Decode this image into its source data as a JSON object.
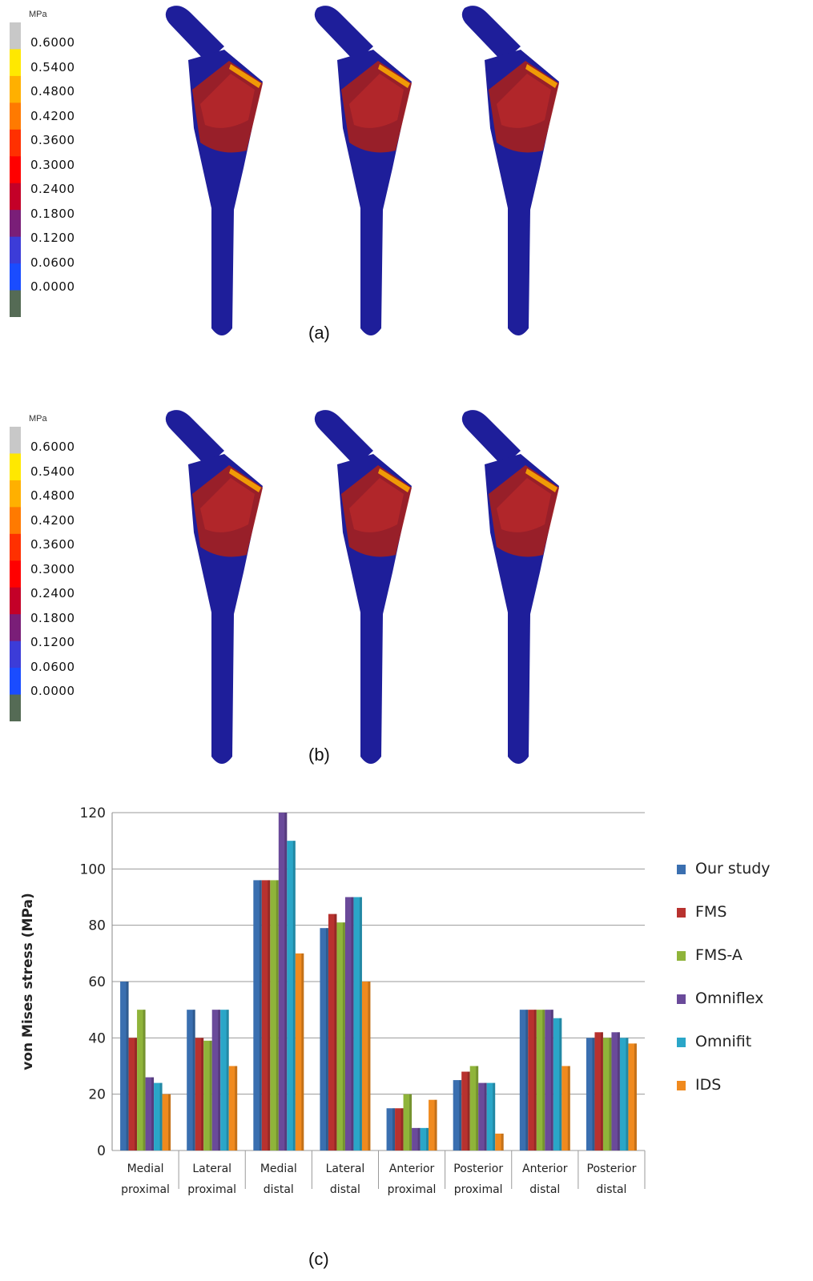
{
  "panels": [
    {
      "label": "(a)",
      "colorbar": {
        "unit": "MPa",
        "ticks": [
          "0.6000",
          "0.5400",
          "0.4800",
          "0.4200",
          "0.3600",
          "0.3000",
          "0.2400",
          "0.1800",
          "0.1200",
          "0.0600",
          "0.0000"
        ]
      },
      "stem_count": 3
    },
    {
      "label": "(b)",
      "colorbar": {
        "unit": "MPa",
        "ticks": [
          "0.6000",
          "0.5400",
          "0.4800",
          "0.4200",
          "0.3600",
          "0.3000",
          "0.2400",
          "0.1800",
          "0.1200",
          "0.0600",
          "0.0000"
        ]
      },
      "stem_count": 3
    }
  ],
  "colorbar_colors": [
    "#c8c8c8",
    "#ffe800",
    "#ffb000",
    "#ff7a00",
    "#ff3000",
    "#ff0000",
    "#c40028",
    "#7a1e78",
    "#3c3cd8",
    "#1a4cff",
    "#556b55"
  ],
  "stem_colors": {
    "base": "#1e1e9a",
    "stress": "#a32020",
    "hot": "#ffb000"
  },
  "chart_label": "(c)",
  "chart_data": {
    "type": "bar",
    "ylabel": "von Mises stress (MPa)",
    "ylim": [
      0,
      120
    ],
    "yticks": [
      0,
      20,
      40,
      60,
      80,
      100,
      120
    ],
    "grid": true,
    "legend_position": "right",
    "categories": [
      [
        "Medial",
        "proximal"
      ],
      [
        "Lateral",
        "proximal"
      ],
      [
        "Medial",
        "distal"
      ],
      [
        "Lateral",
        "distal"
      ],
      [
        "Anterior",
        "proximal"
      ],
      [
        "Posterior",
        "proximal"
      ],
      [
        "Anterior",
        "distal"
      ],
      [
        "Posterior",
        "distal"
      ]
    ],
    "series": [
      {
        "name": "Our study",
        "color": "#3a6fb0",
        "values": [
          60,
          50,
          96,
          79,
          15,
          25,
          50,
          40
        ]
      },
      {
        "name": "FMS",
        "color": "#b8322f",
        "values": [
          40,
          40,
          96,
          84,
          15,
          28,
          50,
          42
        ]
      },
      {
        "name": "FMS-A",
        "color": "#8fb43a",
        "values": [
          50,
          39,
          96,
          81,
          20,
          30,
          50,
          40
        ]
      },
      {
        "name": "Omniflex",
        "color": "#6a4a9a",
        "values": [
          26,
          50,
          120,
          90,
          8,
          24,
          50,
          42
        ]
      },
      {
        "name": "Omnifit",
        "color": "#2aa6c8",
        "values": [
          24,
          50,
          110,
          90,
          8,
          24,
          47,
          40
        ]
      },
      {
        "name": "IDS",
        "color": "#f08a1e",
        "values": [
          20,
          30,
          70,
          60,
          18,
          6,
          30,
          38
        ]
      }
    ]
  }
}
